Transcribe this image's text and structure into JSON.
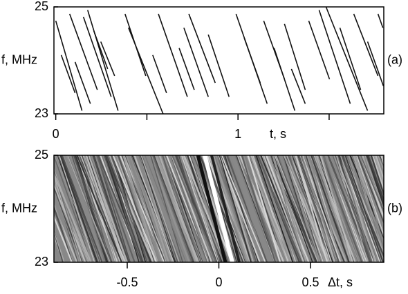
{
  "chart_data": [
    {
      "type": "segments",
      "panel_label": "(a)",
      "ylabel": "f, MHz",
      "xlabel": "t, s",
      "xlim": [
        -0.01,
        1.8
      ],
      "xticks": [
        0,
        1
      ],
      "xminor_ticks": [
        0.5,
        1.5
      ],
      "ylim": [
        23,
        25
      ],
      "yticks": [
        23,
        25
      ],
      "color": "#111111",
      "segments": [
        {
          "t": [
            0,
            0.144
          ],
          "f": [
            24.74,
            23.06
          ]
        },
        {
          "t": [
            0.03,
            0.106
          ],
          "f": [
            24.1,
            23.39
          ]
        },
        {
          "t": [
            0.076,
            0.228
          ],
          "f": [
            24.87,
            23.45
          ]
        },
        {
          "t": [
            0.106,
            0.19
          ],
          "f": [
            23.97,
            23.19
          ]
        },
        {
          "t": [
            0.152,
            0.304
          ],
          "f": [
            24.81,
            23.32
          ]
        },
        {
          "t": [
            0.175,
            0.342
          ],
          "f": [
            24.94,
            23.06
          ]
        },
        {
          "t": [
            0.209,
            0.285
          ],
          "f": [
            24.55,
            23.84
          ]
        },
        {
          "t": [
            0.247,
            0.323
          ],
          "f": [
            24.35,
            23.71
          ]
        },
        {
          "t": [
            0.38,
            0.494
          ],
          "f": [
            24.87,
            23.71
          ]
        },
        {
          "t": [
            0.399,
            0.589
          ],
          "f": [
            24.61,
            23
          ]
        },
        {
          "t": [
            0.532,
            0.608
          ],
          "f": [
            24.1,
            23.39
          ]
        },
        {
          "t": [
            0.563,
            0.722
          ],
          "f": [
            24.87,
            23.32
          ]
        },
        {
          "t": [
            0.677,
            0.76
          ],
          "f": [
            24.23,
            23.45
          ]
        },
        {
          "t": [
            0.703,
            0.837
          ],
          "f": [
            24.61,
            23.32
          ]
        },
        {
          "t": [
            0.73,
            0.875
          ],
          "f": [
            24.87,
            23.58
          ]
        },
        {
          "t": [
            0.837,
            0.951
          ],
          "f": [
            24.48,
            23.32
          ]
        },
        {
          "t": [
            0.989,
            1.16
          ],
          "f": [
            24.87,
            23.19
          ]
        },
        {
          "t": [
            1.034,
            1.122
          ],
          "f": [
            24.42,
            23.58
          ]
        },
        {
          "t": [
            1.141,
            1.255
          ],
          "f": [
            24.74,
            23.65
          ]
        },
        {
          "t": [
            1.198,
            1.312
          ],
          "f": [
            24.23,
            23.06
          ]
        },
        {
          "t": [
            1.255,
            1.369
          ],
          "f": [
            24.68,
            23.45
          ]
        },
        {
          "t": [
            1.293,
            1.369
          ],
          "f": [
            23.84,
            23.19
          ]
        },
        {
          "t": [
            1.388,
            1.502
          ],
          "f": [
            24.74,
            23.65
          ]
        },
        {
          "t": [
            1.445,
            1.616
          ],
          "f": [
            24.94,
            23.19
          ]
        },
        {
          "t": [
            1.483,
            1.711
          ],
          "f": [
            25,
            23.06
          ]
        },
        {
          "t": [
            1.559,
            1.673
          ],
          "f": [
            24.61,
            23.45
          ]
        },
        {
          "t": [
            1.635,
            1.768
          ],
          "f": [
            24.87,
            23.71
          ]
        },
        {
          "t": [
            1.711,
            1.798
          ],
          "f": [
            24.35,
            23.52
          ]
        },
        {
          "t": [
            1.768,
            1.795
          ],
          "f": [
            24.87,
            24.61
          ]
        }
      ]
    },
    {
      "type": "image",
      "panel_label": "(b)",
      "ylabel": "f, MHz",
      "xlabel": "Δt, s",
      "xlim": [
        -0.9,
        0.9
      ],
      "xticks": [
        -0.5,
        0,
        0.5
      ],
      "ylim": [
        23,
        25
      ],
      "yticks": [
        23,
        25
      ]
    }
  ]
}
